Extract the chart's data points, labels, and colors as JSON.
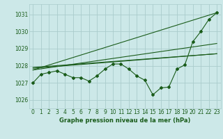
{
  "title": "Graphe pression niveau de la mer (hPa)",
  "bg_color": "#cce8e8",
  "grid_color": "#aacccc",
  "line_color": "#1a5c1a",
  "xlim": [
    -0.5,
    23.5
  ],
  "ylim": [
    1025.5,
    1031.6
  ],
  "yticks": [
    1026,
    1027,
    1028,
    1029,
    1030,
    1031
  ],
  "xticks": [
    0,
    1,
    2,
    3,
    4,
    5,
    6,
    7,
    8,
    9,
    10,
    11,
    12,
    13,
    14,
    15,
    16,
    17,
    18,
    19,
    20,
    21,
    22,
    23
  ],
  "main_data": [
    1027.0,
    1027.5,
    1027.6,
    1027.7,
    1027.5,
    1027.3,
    1027.3,
    1027.1,
    1027.4,
    1027.8,
    1028.1,
    1028.1,
    1027.8,
    1027.4,
    1027.15,
    1026.3,
    1026.7,
    1026.75,
    1027.8,
    1028.05,
    1029.4,
    1030.0,
    1030.7,
    1031.1
  ],
  "fan_lines": [
    [
      [
        0,
        1027.75
      ],
      [
        23,
        1031.1
      ]
    ],
    [
      [
        0,
        1027.75
      ],
      [
        23,
        1029.3
      ]
    ],
    [
      [
        0,
        1027.85
      ],
      [
        23,
        1028.7
      ]
    ],
    [
      [
        0,
        1027.9
      ],
      [
        23,
        1028.7
      ]
    ]
  ]
}
